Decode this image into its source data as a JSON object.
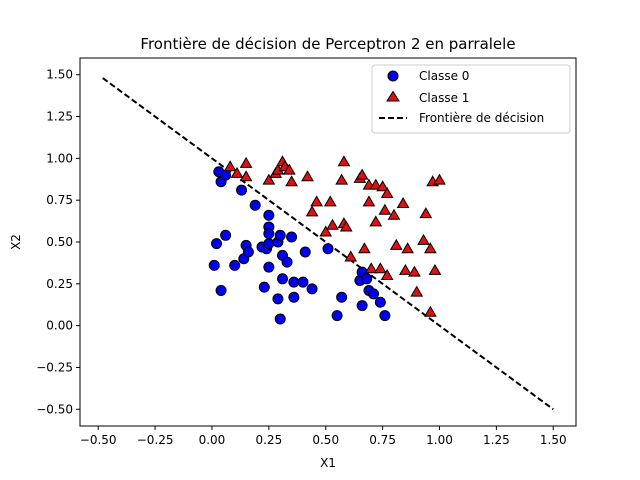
{
  "chart_data": {
    "type": "scatter",
    "title": "Frontière de décision de Perceptron 2 en parralele",
    "xlabel": "X1",
    "ylabel": "X2",
    "xlim": [
      -0.58,
      1.6
    ],
    "ylim": [
      -0.6,
      1.6
    ],
    "xticks": [
      -0.5,
      -0.25,
      0.0,
      0.25,
      0.5,
      0.75,
      1.0,
      1.25,
      1.5
    ],
    "xtick_labels": [
      "−0.50",
      "−0.25",
      "0.00",
      "0.25",
      "0.50",
      "0.75",
      "1.00",
      "1.25",
      "1.50"
    ],
    "yticks": [
      -0.5,
      -0.25,
      0.0,
      0.25,
      0.5,
      0.75,
      1.0,
      1.25,
      1.5
    ],
    "ytick_labels": [
      "−0.50",
      "−0.25",
      "0.00",
      "0.25",
      "0.50",
      "0.75",
      "1.00",
      "1.25",
      "1.50"
    ],
    "grid": false,
    "legend_position": "top-right",
    "series": [
      {
        "name": "Classe 0",
        "marker": "circle",
        "color": "#0000ee",
        "points": [
          [
            0.03,
            0.92
          ],
          [
            0.04,
            0.86
          ],
          [
            0.06,
            0.9
          ],
          [
            0.13,
            0.81
          ],
          [
            0.19,
            0.72
          ],
          [
            0.25,
            0.66
          ],
          [
            0.25,
            0.59
          ],
          [
            0.25,
            0.55
          ],
          [
            0.02,
            0.49
          ],
          [
            0.06,
            0.54
          ],
          [
            0.15,
            0.48
          ],
          [
            0.22,
            0.47
          ],
          [
            0.24,
            0.46
          ],
          [
            0.25,
            0.49
          ],
          [
            0.29,
            0.5
          ],
          [
            0.3,
            0.54
          ],
          [
            0.35,
            0.53
          ],
          [
            0.14,
            0.4
          ],
          [
            0.16,
            0.44
          ],
          [
            0.1,
            0.36
          ],
          [
            0.01,
            0.36
          ],
          [
            0.25,
            0.35
          ],
          [
            0.31,
            0.42
          ],
          [
            0.33,
            0.38
          ],
          [
            0.41,
            0.44
          ],
          [
            0.04,
            0.21
          ],
          [
            0.23,
            0.23
          ],
          [
            0.31,
            0.28
          ],
          [
            0.36,
            0.26
          ],
          [
            0.4,
            0.26
          ],
          [
            0.44,
            0.22
          ],
          [
            0.29,
            0.16
          ],
          [
            0.36,
            0.17
          ],
          [
            0.3,
            0.04
          ],
          [
            0.51,
            0.46
          ],
          [
            0.57,
            0.17
          ],
          [
            0.55,
            0.06
          ],
          [
            0.65,
            0.27
          ],
          [
            0.66,
            0.32
          ],
          [
            0.68,
            0.28
          ],
          [
            0.69,
            0.21
          ],
          [
            0.71,
            0.19
          ],
          [
            0.74,
            0.14
          ],
          [
            0.66,
            0.12
          ],
          [
            0.76,
            0.06
          ]
        ]
      },
      {
        "name": "Classe 1",
        "marker": "triangle",
        "color": "#dd1111",
        "points": [
          [
            0.08,
            0.95
          ],
          [
            0.11,
            0.91
          ],
          [
            0.15,
            0.97
          ],
          [
            0.15,
            0.89
          ],
          [
            0.25,
            0.87
          ],
          [
            0.28,
            0.91
          ],
          [
            0.29,
            0.93
          ],
          [
            0.31,
            0.98
          ],
          [
            0.32,
            0.95
          ],
          [
            0.34,
            0.93
          ],
          [
            0.35,
            0.86
          ],
          [
            0.42,
            0.89
          ],
          [
            0.44,
            0.68
          ],
          [
            0.46,
            0.74
          ],
          [
            0.5,
            0.56
          ],
          [
            0.52,
            0.74
          ],
          [
            0.53,
            0.6
          ],
          [
            0.57,
            0.87
          ],
          [
            0.58,
            0.98
          ],
          [
            0.58,
            0.61
          ],
          [
            0.59,
            0.59
          ],
          [
            0.61,
            0.41
          ],
          [
            0.65,
            0.88
          ],
          [
            0.66,
            0.9
          ],
          [
            0.67,
            0.46
          ],
          [
            0.69,
            0.84
          ],
          [
            0.69,
            0.74
          ],
          [
            0.7,
            0.34
          ],
          [
            0.72,
            0.84
          ],
          [
            0.72,
            0.62
          ],
          [
            0.74,
            0.34
          ],
          [
            0.75,
            0.83
          ],
          [
            0.76,
            0.69
          ],
          [
            0.77,
            0.79
          ],
          [
            0.77,
            0.3
          ],
          [
            0.8,
            0.66
          ],
          [
            0.81,
            0.48
          ],
          [
            0.84,
            0.73
          ],
          [
            0.85,
            0.33
          ],
          [
            0.86,
            0.46
          ],
          [
            0.89,
            0.32
          ],
          [
            0.9,
            0.2
          ],
          [
            0.93,
            0.51
          ],
          [
            0.94,
            0.67
          ],
          [
            0.96,
            0.46
          ],
          [
            0.97,
            0.86
          ],
          [
            0.98,
            0.33
          ],
          [
            1.0,
            0.87
          ],
          [
            0.96,
            0.08
          ]
        ]
      },
      {
        "name": "Frontière de décision",
        "style": "dashed-line",
        "color": "#000000",
        "x": [
          -0.48,
          1.5
        ],
        "y": [
          1.48,
          -0.5
        ]
      }
    ]
  }
}
